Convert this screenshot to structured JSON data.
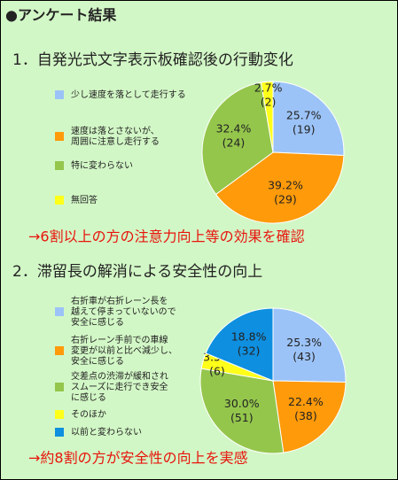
{
  "header": {
    "title": "●アンケート結果"
  },
  "chart_data": [
    {
      "type": "pie",
      "title": "1．自発光式文字表示板確認後の行動変化",
      "categories": [
        "少し速度を落として走行する",
        "速度は落とさないが、\n周囲に注意し走行する",
        "特に変わらない",
        "無回答"
      ],
      "values": [
        25.7,
        39.2,
        32.4,
        2.7
      ],
      "value_labels": [
        "25.7%",
        "39.2%",
        "32.4%",
        "2.7%"
      ],
      "counts": [
        19,
        29,
        24,
        2
      ],
      "count_labels": [
        "(19)",
        "(29)",
        "(24)",
        "(2)"
      ],
      "colors": [
        "#9cc3f7",
        "#ff9a0a",
        "#94c64c",
        "#ffff1a"
      ],
      "annotation": "→6割以上の方の注意力向上等の効果を確認"
    },
    {
      "type": "pie",
      "title": "2．滞留長の解消による安全性の向上",
      "categories": [
        "右折車が右折レーン長を\n越えて停まっていないので\n安全に感じる",
        "右折レーン手前での車線\n変更が以前と比べ減少し、\n安全に感じる",
        "交差点の渋滞が緩和され\nスムーズに走行でき安全\nに感じる",
        "そのほか",
        "以前と変わらない"
      ],
      "values": [
        25.3,
        22.4,
        30.0,
        3.5,
        18.8
      ],
      "value_labels": [
        "25.3%",
        "22.4%",
        "30.0%",
        "3.5%",
        "18.8%"
      ],
      "counts": [
        43,
        38,
        51,
        6,
        32
      ],
      "count_labels": [
        "(43)",
        "(38)",
        "(51)",
        "(6)",
        "(32)"
      ],
      "colors": [
        "#9cc3f7",
        "#ff9a0a",
        "#94c64c",
        "#ffff1a",
        "#0f8fe0"
      ],
      "annotation": "→約8割の方が安全性の向上を実感"
    }
  ]
}
